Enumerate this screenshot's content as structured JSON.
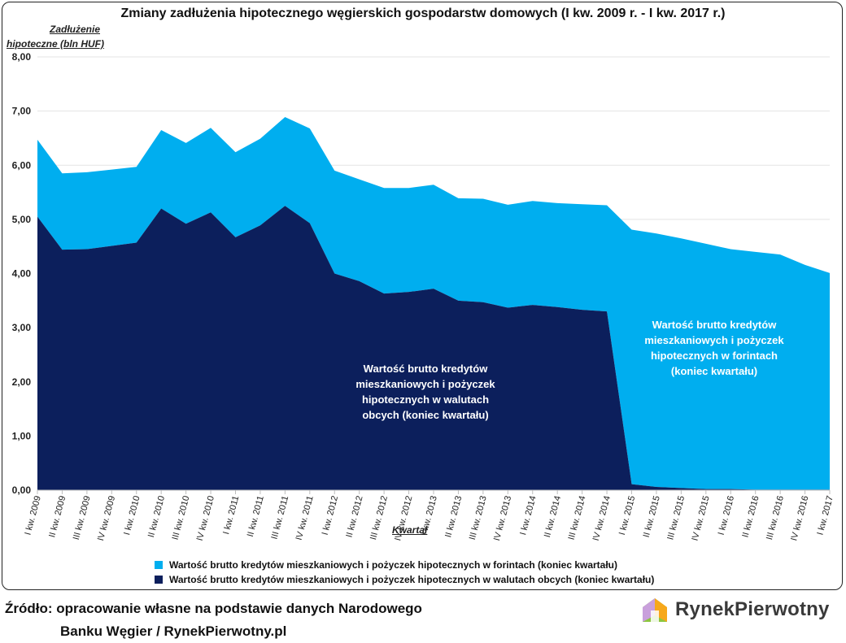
{
  "chart_data": {
    "type": "area",
    "stacked": true,
    "title": "Zmiany zadłużenia hipotecznego węgierskich gospodarstw domowych (I kw. 2009 r. - I kw. 2017 r.)",
    "ylabel_line1": "Zadłużenie",
    "ylabel_line2": "hipoteczne (bln HUF)",
    "xlabel": "Kwartał",
    "ylim": [
      0,
      8
    ],
    "yticks": [
      "0,00",
      "1,00",
      "2,00",
      "3,00",
      "4,00",
      "5,00",
      "6,00",
      "7,00",
      "8,00"
    ],
    "grid": true,
    "legend_position": "bottom",
    "categories": [
      "I kw. 2009",
      "II kw. 2009",
      "III kw. 2009",
      "IV kw. 2009",
      "I kw. 2010",
      "II kw. 2010",
      "III kw. 2010",
      "IV kw. 2010",
      "I kw. 2011",
      "II kw. 2011",
      "III kw. 2011",
      "IV kw. 2011",
      "I kw. 2012",
      "II kw. 2012",
      "III kw. 2012",
      "IV kw. 2012",
      "I kw. 2013",
      "II kw. 2013",
      "III kw. 2013",
      "IV kw. 2013",
      "I kw. 2014",
      "II kw. 2014",
      "III kw. 2014",
      "IV kw. 2014",
      "I kw. 2015",
      "II kw. 2015",
      "III kw. 2015",
      "IV kw. 2015",
      "I kw. 2016",
      "II kw. 2016",
      "III kw. 2016",
      "IV kw. 2016",
      "I kw. 2017"
    ],
    "series": [
      {
        "name": "Wartość brutto kredytów mieszkaniowych i pożyczek hipotecznych w walutach obcych (koniec kwartału)",
        "color": "#0c1f5c",
        "values": [
          5.05,
          4.44,
          4.45,
          4.51,
          4.57,
          5.2,
          4.92,
          5.13,
          4.67,
          4.89,
          5.25,
          4.93,
          4.0,
          3.86,
          3.63,
          3.66,
          3.72,
          3.5,
          3.47,
          3.37,
          3.42,
          3.38,
          3.33,
          3.3,
          0.11,
          0.06,
          0.04,
          0.02,
          0.02,
          0.01,
          0.01,
          0.01,
          0.01
        ]
      },
      {
        "name": "Wartość brutto kredytów mieszkaniowych i pożyczek hipotecznych w forintach (koniec kwartału)",
        "color": "#00aeef",
        "values": [
          1.42,
          1.41,
          1.42,
          1.41,
          1.4,
          1.45,
          1.49,
          1.56,
          1.57,
          1.6,
          1.64,
          1.75,
          1.9,
          1.88,
          1.95,
          1.92,
          1.92,
          1.89,
          1.91,
          1.9,
          1.92,
          1.92,
          1.95,
          1.96,
          4.7,
          4.68,
          4.61,
          4.53,
          4.43,
          4.39,
          4.34,
          4.15,
          4.0
        ]
      }
    ],
    "annotations": {
      "fx_lines": [
        "Wartość brutto kredytów",
        "mieszkaniowych i pożyczek",
        "hipotecznych w walutach",
        "obcych (koniec kwartału)"
      ],
      "huf_lines": [
        "Wartość brutto kredytów",
        "mieszkaniowych i pożyczek",
        "hipotecznych w forintach",
        "(koniec kwartału)"
      ]
    }
  },
  "legend": {
    "huf_label": "Wartość brutto kredytów mieszkaniowych i pożyczek hipotecznych w forintach (koniec kwartału)",
    "fx_label": "Wartość brutto kredytów mieszkaniowych i pożyczek hipotecznych w walutach obcych (koniec kwartału)"
  },
  "footer": {
    "source_line1": "Źródło: opracowanie własne na podstawie danych Narodowego",
    "source_line2": "Banku Węgier / RynekPierwotny.pl",
    "logo_part1": "Rynek",
    "logo_part2": "Pierwotny"
  },
  "colors": {
    "fx": "#0c1f5c",
    "huf": "#00aeef",
    "grid": "#e3e3e3",
    "annotation_text": "#ffffff"
  }
}
